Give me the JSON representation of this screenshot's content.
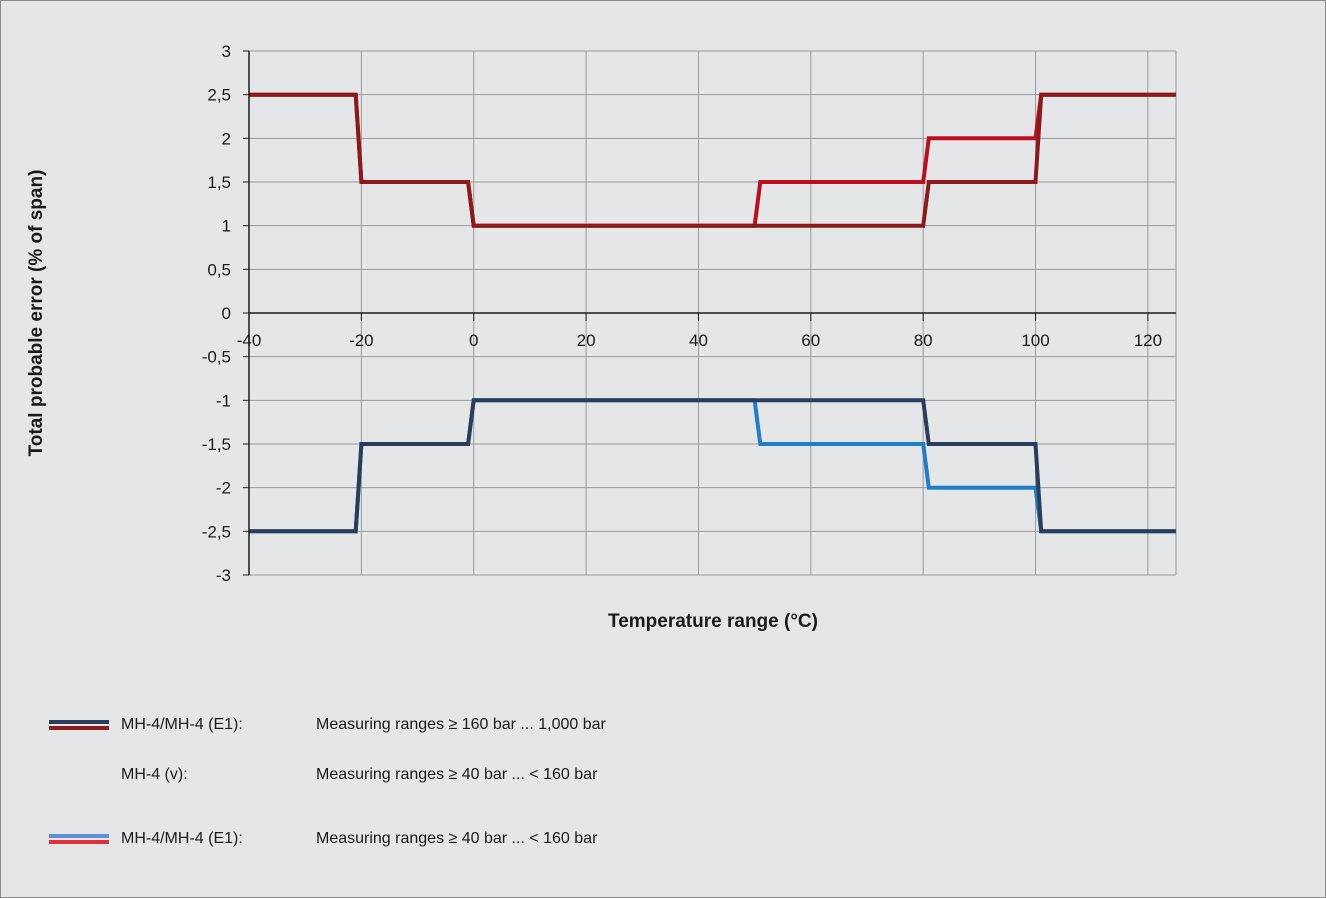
{
  "chart_data": {
    "type": "line",
    "xlabel": "Temperature range (°C)",
    "ylabel": "Total probable error (% of span)",
    "xlim": [
      -40,
      125
    ],
    "ylim": [
      -3,
      3
    ],
    "x_ticks": [
      -40,
      -20,
      0,
      20,
      40,
      60,
      80,
      100,
      120
    ],
    "x_tick_labels": [
      "-40",
      "-20",
      "0",
      "20",
      "40",
      "60",
      "80",
      "100",
      "120"
    ],
    "y_ticks": [
      3,
      2.5,
      2,
      1.5,
      1,
      0.5,
      0,
      -0.5,
      -1,
      -1.5,
      -2,
      -2.5,
      -3
    ],
    "y_tick_labels": [
      "3",
      "2,5",
      "2",
      "1,5",
      "1",
      "0,5",
      "0",
      "-0,5",
      "-1",
      "-1,5",
      "-2",
      "-2,5",
      "-3"
    ],
    "grid": true,
    "series": [
      {
        "color": "#c00d1e",
        "x": [
          -40,
          -21,
          -20,
          -1,
          0,
          50,
          51,
          80,
          81,
          100,
          101,
          125
        ],
        "y": [
          2.5,
          2.5,
          1.5,
          1.5,
          1,
          1,
          1.5,
          1.5,
          2,
          2,
          2.5,
          2.5
        ]
      },
      {
        "color": "#8b1a1a",
        "x": [
          -40,
          -21,
          -20,
          -1,
          0,
          80,
          81,
          100,
          101,
          125
        ],
        "y": [
          2.5,
          2.5,
          1.5,
          1.5,
          1,
          1,
          1.5,
          1.5,
          2.5,
          2.5
        ]
      },
      {
        "color": "#1e7fc8",
        "x": [
          -40,
          -21,
          -20,
          -1,
          0,
          50,
          51,
          80,
          81,
          100,
          101,
          125
        ],
        "y": [
          -2.5,
          -2.5,
          -1.5,
          -1.5,
          -1,
          -1,
          -1.5,
          -1.5,
          -2,
          -2,
          -2.5,
          -2.5
        ]
      },
      {
        "color": "#2a3d5c",
        "x": [
          -40,
          -21,
          -20,
          -1,
          0,
          80,
          81,
          100,
          101,
          125
        ],
        "y": [
          -2.5,
          -2.5,
          -1.5,
          -1.5,
          -1,
          -1,
          -1.5,
          -1.5,
          -2.5,
          -2.5
        ]
      }
    ]
  },
  "legend": [
    {
      "swatch": [
        "#2a3d5c",
        "#8b1a1a"
      ],
      "model": "MH-4/MH-4 (E1):",
      "range": "Measuring ranges ≥ 160 bar ... 1,000 bar"
    },
    {
      "swatch": [],
      "model": "MH-4 (v):",
      "range": "Measuring ranges ≥ 40 bar ... < 160 bar"
    },
    {
      "swatch": [
        "#5b8fd6",
        "#e0303a"
      ],
      "model": "MH-4/MH-4 (E1):",
      "range": "Measuring ranges ≥ 40 bar ... < 160 bar"
    }
  ]
}
